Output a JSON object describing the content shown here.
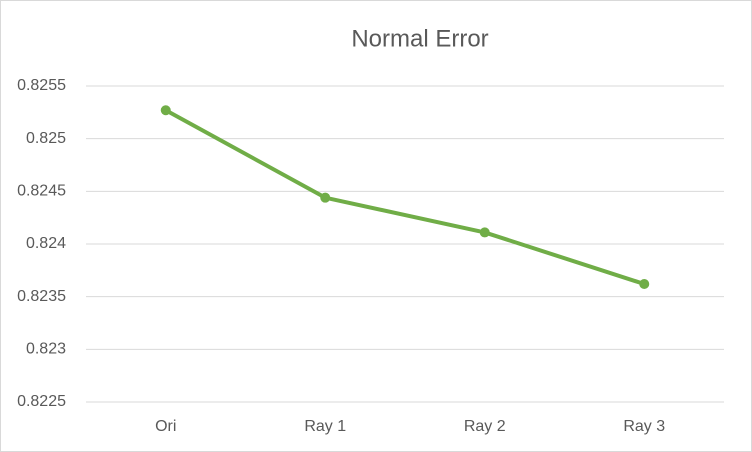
{
  "chart_data": {
    "type": "line",
    "title": "Normal Error",
    "categories": [
      "Ori",
      "Ray 1",
      "Ray 2",
      "Ray 3"
    ],
    "series": [
      {
        "name": "Normal Error",
        "color": "#70ad47",
        "values": [
          0.82527,
          0.82444,
          0.82411,
          0.82362
        ]
      }
    ],
    "ylim": [
      0.8225,
      0.8255
    ],
    "yticks": [
      0.8225,
      0.823,
      0.8235,
      0.824,
      0.8245,
      0.825,
      0.8255
    ],
    "grid": true
  }
}
